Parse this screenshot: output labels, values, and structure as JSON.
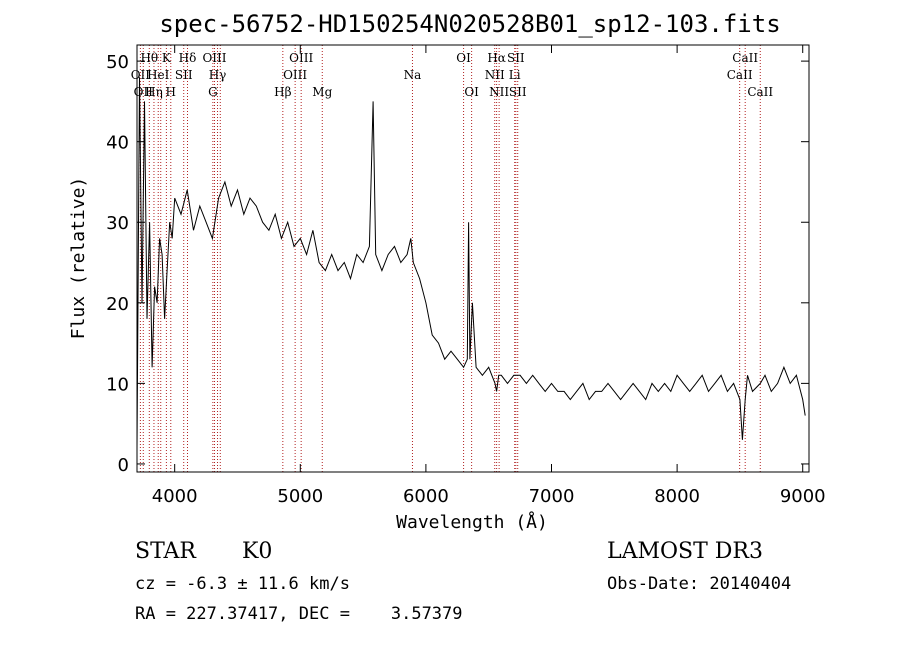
{
  "chart_data": {
    "type": "line",
    "title": "spec-56752-HD150254N020528B01_sp12-103.fits",
    "xlabel": "Wavelength (Å)",
    "ylabel": "Flux (relative)",
    "xlim": [
      3700,
      9050
    ],
    "ylim": [
      -1,
      52
    ],
    "xticks": [
      4000,
      5000,
      6000,
      7000,
      8000,
      9000
    ],
    "yticks": [
      0,
      10,
      20,
      30,
      40,
      50
    ],
    "grid": false,
    "series": [
      {
        "x": [
          3700,
          3720,
          3740,
          3760,
          3780,
          3800,
          3820,
          3840,
          3860,
          3880,
          3900,
          3920,
          3940,
          3960,
          3980,
          4000,
          4050,
          4100,
          4150,
          4200,
          4250,
          4300,
          4350,
          4400,
          4450,
          4500,
          4550,
          4600,
          4650,
          4700,
          4750,
          4800,
          4850,
          4900,
          4950,
          5000,
          5050,
          5100,
          5150,
          5200,
          5250,
          5300,
          5350,
          5400,
          5450,
          5500,
          5550,
          5580,
          5600,
          5650,
          5700,
          5750,
          5800,
          5850,
          5880,
          5900,
          5950,
          6000,
          6050,
          6100,
          6150,
          6200,
          6250,
          6300,
          6330,
          6340,
          6350,
          6370,
          6400,
          6450,
          6500,
          6550,
          6563,
          6580,
          6600,
          6650,
          6700,
          6750,
          6800,
          6850,
          6900,
          6950,
          7000,
          7050,
          7100,
          7150,
          7200,
          7250,
          7300,
          7350,
          7400,
          7450,
          7500,
          7550,
          7600,
          7650,
          7700,
          7750,
          7800,
          7850,
          7900,
          7950,
          8000,
          8050,
          8100,
          8150,
          8200,
          8250,
          8300,
          8350,
          8400,
          8450,
          8500,
          8520,
          8542,
          8560,
          8600,
          8662,
          8700,
          8750,
          8800,
          8850,
          8900,
          8950,
          9000,
          9020
        ],
        "y": [
          2,
          48,
          20,
          45,
          18,
          30,
          12,
          22,
          20,
          28,
          26,
          18,
          24,
          30,
          28,
          33,
          31,
          34,
          29,
          32,
          30,
          28,
          33,
          35,
          32,
          34,
          31,
          33,
          32,
          30,
          29,
          31,
          28,
          30,
          27,
          28,
          26,
          29,
          25,
          24,
          26,
          24,
          25,
          23,
          26,
          25,
          27,
          45,
          26,
          24,
          26,
          27,
          25,
          26,
          28,
          25,
          23,
          20,
          16,
          15,
          13,
          14,
          13,
          12,
          13,
          30,
          13,
          20,
          12,
          11,
          12,
          10,
          9,
          11,
          11,
          10,
          11,
          11,
          10,
          11,
          10,
          9,
          10,
          9,
          9,
          8,
          9,
          10,
          8,
          9,
          9,
          10,
          9,
          8,
          9,
          10,
          9,
          8,
          10,
          9,
          10,
          9,
          11,
          10,
          9,
          10,
          11,
          9,
          10,
          11,
          9,
          10,
          8,
          3,
          8,
          11,
          9,
          10,
          11,
          9,
          10,
          12,
          10,
          11,
          8,
          6
        ]
      }
    ],
    "lines": [
      {
        "wl": 3727,
        "label": "OII",
        "row": 1
      },
      {
        "wl": 3750,
        "label": "OII",
        "row": 2
      },
      {
        "wl": 3798,
        "label": "Hθ",
        "row": 0
      },
      {
        "wl": 3835,
        "label": "Hη",
        "row": 2
      },
      {
        "wl": 3869,
        "label": "HeI",
        "row": 1
      },
      {
        "wl": 3889,
        "label": "",
        "row": 1
      },
      {
        "wl": 3934,
        "label": "K",
        "row": 0
      },
      {
        "wl": 3969,
        "label": "H",
        "row": 2
      },
      {
        "wl": 4072,
        "label": "SII",
        "row": 1
      },
      {
        "wl": 4102,
        "label": "Hδ",
        "row": 0
      },
      {
        "wl": 4304,
        "label": "G",
        "row": 2
      },
      {
        "wl": 4317,
        "label": "OIII",
        "row": 0
      },
      {
        "wl": 4341,
        "label": "Hγ",
        "row": 1
      },
      {
        "wl": 4363,
        "label": "",
        "row": 1
      },
      {
        "wl": 4861,
        "label": "Hβ",
        "row": 2
      },
      {
        "wl": 4959,
        "label": "OIII",
        "row": 1
      },
      {
        "wl": 5007,
        "label": "OIII",
        "row": 0
      },
      {
        "wl": 5175,
        "label": "Mg",
        "row": 2
      },
      {
        "wl": 5893,
        "label": "Na",
        "row": 1
      },
      {
        "wl": 6300,
        "label": "OI",
        "row": 0
      },
      {
        "wl": 6364,
        "label": "OI",
        "row": 2
      },
      {
        "wl": 6548,
        "label": "NII",
        "row": 1
      },
      {
        "wl": 6563,
        "label": "Hα",
        "row": 0
      },
      {
        "wl": 6583,
        "label": "NII",
        "row": 2
      },
      {
        "wl": 6707,
        "label": "Li",
        "row": 1
      },
      {
        "wl": 6716,
        "label": "SII",
        "row": 0
      },
      {
        "wl": 6731,
        "label": "SII",
        "row": 2
      },
      {
        "wl": 8498,
        "label": "CaII",
        "row": 1
      },
      {
        "wl": 8542,
        "label": "CaII",
        "row": 0
      },
      {
        "wl": 8662,
        "label": "CaII",
        "row": 2
      }
    ]
  },
  "info": {
    "class_label": "STAR",
    "subclass_label": "K0",
    "cz_line": "cz = -6.3 ± 11.6 km/s",
    "radec_line": "RA = 227.37417, DEC =    3.57379",
    "survey": "LAMOST DR3",
    "obs_date": "Obs-Date: 20140404"
  }
}
